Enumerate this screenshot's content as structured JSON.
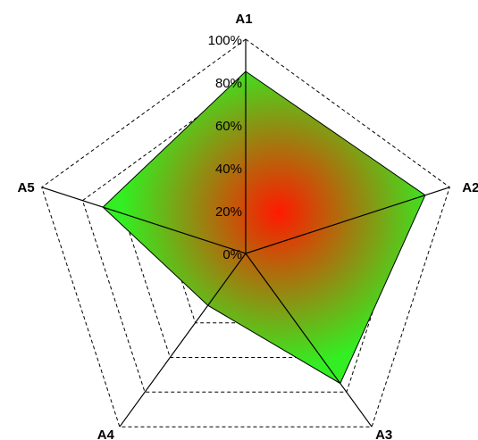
{
  "chart_data": {
    "type": "radar",
    "axes": [
      "A1",
      "A2",
      "A3",
      "A4",
      "A5"
    ],
    "series": [
      {
        "values": [
          85,
          88,
          75,
          30,
          70
        ]
      }
    ],
    "r_ticks": [
      0,
      20,
      40,
      60,
      80,
      100
    ],
    "r_tick_labels": [
      "0%",
      "20%",
      "40%",
      "60%",
      "80%",
      "100%"
    ],
    "r_range": [
      0,
      100
    ],
    "grid": true,
    "grid_style": "dashed",
    "legend": "none",
    "colors": {
      "fill_center": "#ff1a00",
      "fill_edge": "#33ee22",
      "outline": "#000000",
      "grid": "#000000"
    }
  }
}
